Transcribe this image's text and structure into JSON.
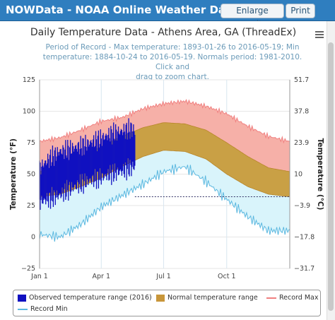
{
  "window": {
    "title": "NOWData - NOAA Online Weather Data",
    "enlarge_label": "Enlarge results",
    "print_label": "Print"
  },
  "chart_data": {
    "type": "area",
    "title": "Daily Temperature Data - Athens Area, GA (ThreadEx)",
    "subtitle_lines": [
      "Period of Record - Max temperature: 1893-01-26 to 2016-05-19; Min",
      "temperature: 1884-10-24 to 2016-05-19. Normals period: 1981-2010. Click and",
      "drag to zoom chart."
    ],
    "ylabel_left": "Temperature (°F)",
    "ylabel_right": "Temperature (°C)",
    "ylim": [
      -25,
      125
    ],
    "yticks_left": [
      "125",
      "100",
      "75",
      "50",
      "25",
      "0",
      "−25"
    ],
    "yticks_right": [
      "51.7",
      "37.8",
      "23.9",
      "10",
      "−3.9",
      "−17.8",
      "−31.7"
    ],
    "xticks": [
      "Jan 1",
      "Apr 1",
      "Jul 1",
      "Oct 1"
    ],
    "xtick_days": [
      1,
      91,
      182,
      274
    ],
    "grid": true,
    "days_in_year": 366,
    "reference_line_y": 32,
    "series": [
      {
        "name": "Record Max",
        "color": "#f08080",
        "fill": "#f6b0a8",
        "x": [
          1,
          31,
          61,
          91,
          121,
          152,
          182,
          213,
          244,
          274,
          305,
          335,
          366
        ],
        "values": [
          76,
          79,
          85,
          92,
          95,
          102,
          106,
          108,
          104,
          98,
          88,
          80,
          76
        ]
      },
      {
        "name": "Normal temperature range (high)",
        "color": "#c8963a",
        "x": [
          1,
          31,
          61,
          91,
          121,
          152,
          182,
          213,
          244,
          274,
          305,
          335,
          366
        ],
        "values": [
          52,
          56,
          64,
          72,
          80,
          87,
          91,
          90,
          85,
          75,
          64,
          55,
          52
        ]
      },
      {
        "name": "Normal temperature range (low)",
        "color": "#c8963a",
        "x": [
          1,
          31,
          61,
          91,
          121,
          152,
          182,
          213,
          244,
          274,
          305,
          335,
          366
        ],
        "values": [
          32,
          34,
          40,
          47,
          56,
          64,
          69,
          68,
          62,
          50,
          40,
          34,
          32
        ]
      },
      {
        "name": "Record Min",
        "color": "#5bb8e0",
        "fill": "#d9f4fb",
        "x": [
          1,
          31,
          61,
          91,
          121,
          152,
          182,
          213,
          244,
          274,
          305,
          335,
          366
        ],
        "values": [
          2,
          0,
          10,
          24,
          33,
          42,
          52,
          56,
          44,
          30,
          16,
          5,
          5
        ]
      },
      {
        "name": "Observed temperature range (2016)",
        "color": "#1010c0",
        "x": [
          1,
          15,
          30,
          45,
          60,
          75,
          90,
          105,
          120,
          135,
          140
        ],
        "high": [
          55,
          62,
          68,
          70,
          72,
          75,
          78,
          82,
          84,
          86,
          84
        ],
        "low": [
          28,
          30,
          33,
          38,
          42,
          45,
          47,
          50,
          52,
          55,
          56
        ]
      }
    ],
    "legend": {
      "placement": "bottom",
      "items": [
        {
          "label": "Observed temperature range (2016)",
          "color": "#1010c0",
          "kind": "box"
        },
        {
          "label": "Normal temperature range",
          "color": "#c8963a",
          "kind": "box"
        },
        {
          "label": "Record Max",
          "color": "#f08080",
          "kind": "line"
        },
        {
          "label": "Record Min",
          "color": "#5bb8e0",
          "kind": "line"
        }
      ]
    }
  }
}
